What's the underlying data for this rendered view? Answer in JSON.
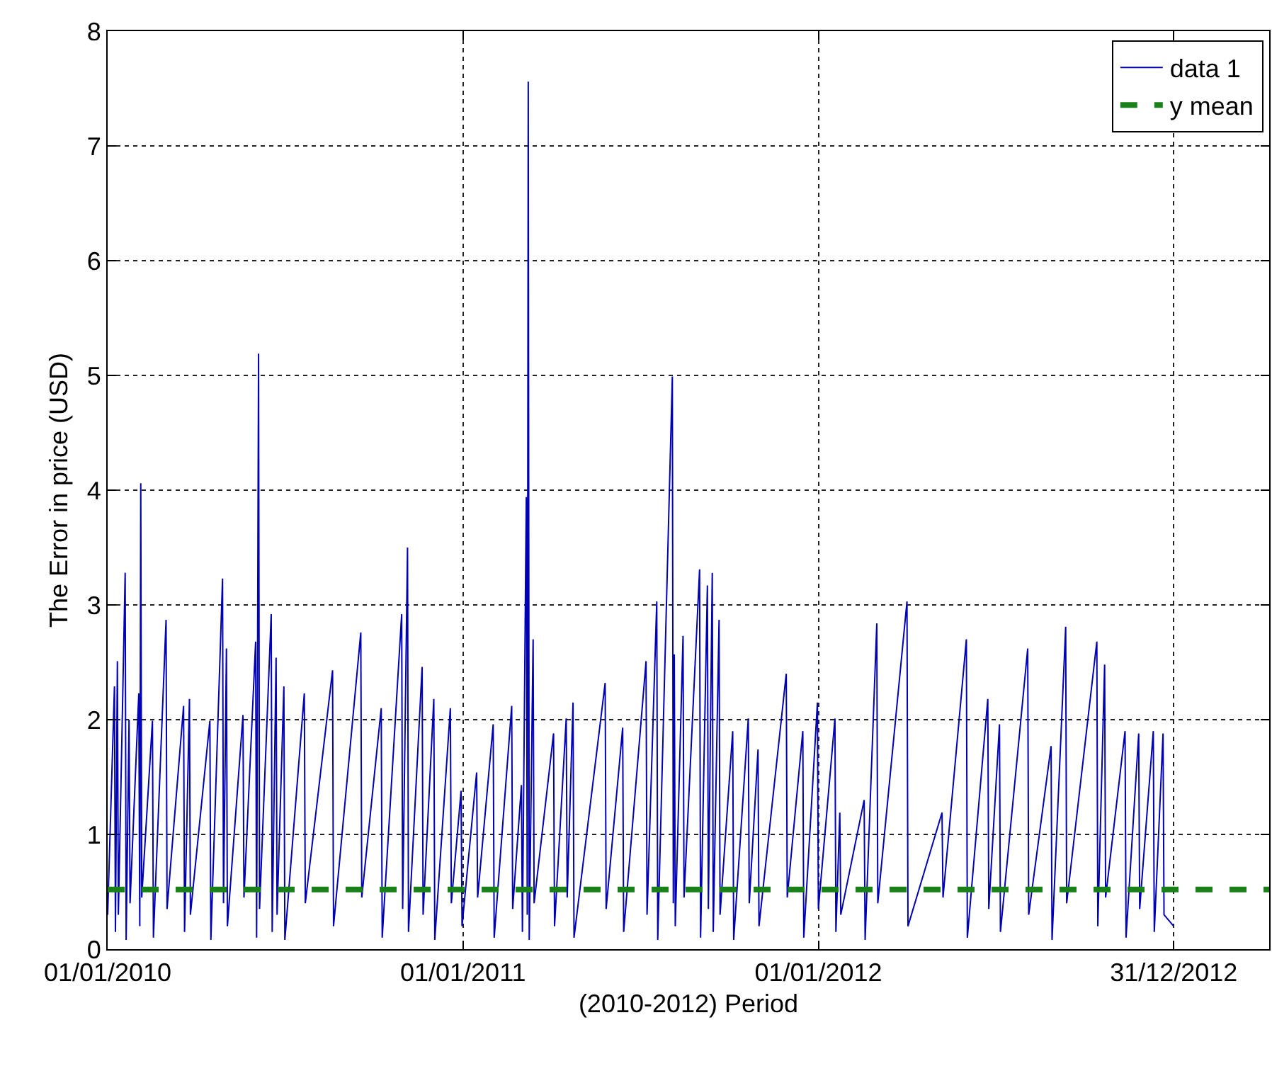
{
  "chart_data": {
    "type": "line",
    "xlabel": "(2010-2012) Period",
    "ylabel": "The Error in price (USD)",
    "xlim": [
      "2010-01-01",
      "2013-04-08"
    ],
    "ylim": [
      0,
      8
    ],
    "xticks": [
      {
        "value": "2010-01-01",
        "label": "01/01/2010"
      },
      {
        "value": "2011-01-01",
        "label": "01/01/2011"
      },
      {
        "value": "2012-01-01",
        "label": "01/01/2012"
      },
      {
        "value": "2012-12-31",
        "label": "31/12/2012"
      }
    ],
    "yticks": [
      0,
      1,
      2,
      3,
      4,
      5,
      6,
      7,
      8
    ],
    "grid": true,
    "legend": "top right",
    "line_style": "solid",
    "marker": "none",
    "ref_lines": [
      {
        "axis": "y",
        "value": 0.52,
        "label": "y mean",
        "color": "#1a801a",
        "line_style": "dashed"
      }
    ],
    "series": [
      {
        "name": "data 1",
        "color": "#0000b4",
        "x": [
          "2010-01-01",
          "2010-01-08",
          "2010-01-09",
          "2010-01-11",
          "2010-01-12",
          "2010-01-19",
          "2010-01-20",
          "2010-01-23",
          "2010-01-24",
          "2010-02-02",
          "2010-02-03",
          "2010-02-04",
          "2010-02-05",
          "2010-02-16",
          "2010-02-17",
          "2010-03-02",
          "2010-03-03",
          "2010-03-20",
          "2010-03-21",
          "2010-03-26",
          "2010-03-27",
          "2010-04-16",
          "2010-04-17",
          "2010-04-29",
          "2010-04-30",
          "2010-05-03",
          "2010-05-04",
          "2010-05-20",
          "2010-05-21",
          "2010-06-02",
          "2010-06-03",
          "2010-06-05",
          "2010-06-06",
          "2010-06-18",
          "2010-06-19",
          "2010-06-23",
          "2010-06-24",
          "2010-07-01",
          "2010-07-02",
          "2010-07-22",
          "2010-07-23",
          "2010-08-20",
          "2010-08-21",
          "2010-09-18",
          "2010-09-19",
          "2010-10-09",
          "2010-10-10",
          "2010-10-30",
          "2010-10-31",
          "2010-11-05",
          "2010-11-06",
          "2010-11-20",
          "2010-11-21",
          "2010-12-02",
          "2010-12-03",
          "2010-12-19",
          "2010-12-20",
          "2010-12-30",
          "2010-12-31",
          "2011-01-15",
          "2011-01-16",
          "2011-02-01",
          "2011-02-02",
          "2011-02-20",
          "2011-02-21",
          "2011-03-02",
          "2011-03-03",
          "2011-03-07",
          "2011-03-08",
          "2011-03-09",
          "2011-03-10",
          "2011-03-14",
          "2011-03-15",
          "2011-04-04",
          "2011-04-05",
          "2011-04-17",
          "2011-04-18",
          "2011-04-24",
          "2011-04-25",
          "2011-05-27",
          "2011-05-28",
          "2011-06-14",
          "2011-06-15",
          "2011-07-08",
          "2011-07-09",
          "2011-07-19",
          "2011-07-20",
          "2011-08-04",
          "2011-08-05",
          "2011-08-06",
          "2011-08-07",
          "2011-08-15",
          "2011-08-16",
          "2011-09-01",
          "2011-09-02",
          "2011-09-09",
          "2011-09-10",
          "2011-09-14",
          "2011-09-15",
          "2011-09-21",
          "2011-09-22",
          "2011-10-05",
          "2011-10-06",
          "2011-10-21",
          "2011-10-22",
          "2011-10-31",
          "2011-11-01",
          "2011-11-29",
          "2011-11-30",
          "2011-12-16",
          "2011-12-17",
          "2011-12-31",
          "2012-01-01",
          "2012-01-18",
          "2012-01-19",
          "2012-01-23",
          "2012-01-24",
          "2012-02-17",
          "2012-02-18",
          "2012-03-01",
          "2012-03-02",
          "2012-04-01",
          "2012-04-02",
          "2012-05-07",
          "2012-05-08",
          "2012-06-01",
          "2012-06-02",
          "2012-06-23",
          "2012-06-24",
          "2012-07-05",
          "2012-07-06",
          "2012-08-03",
          "2012-08-04",
          "2012-08-27",
          "2012-08-28",
          "2012-09-11",
          "2012-09-12",
          "2012-10-13",
          "2012-10-14",
          "2012-10-21",
          "2012-10-22",
          "2012-11-11",
          "2012-11-12",
          "2012-11-25",
          "2012-11-26",
          "2012-12-10",
          "2012-12-11",
          "2012-12-20",
          "2012-12-21",
          "2012-12-31"
        ],
        "values": [
          0.3,
          2.29,
          0.15,
          2.51,
          0.3,
          3.28,
          0.08,
          2.0,
          0.4,
          2.23,
          0.2,
          4.06,
          0.45,
          1.99,
          0.1,
          2.87,
          0.35,
          2.12,
          0.15,
          2.18,
          0.3,
          1.99,
          0.08,
          3.23,
          0.4,
          2.62,
          0.2,
          2.04,
          0.45,
          2.68,
          0.1,
          5.19,
          0.35,
          2.92,
          0.15,
          2.54,
          0.3,
          2.29,
          0.08,
          2.23,
          0.4,
          2.43,
          0.2,
          2.76,
          0.45,
          2.1,
          0.1,
          2.92,
          0.35,
          3.5,
          0.15,
          2.46,
          0.3,
          2.18,
          0.08,
          2.1,
          0.4,
          1.38,
          0.2,
          1.54,
          0.45,
          1.96,
          0.1,
          2.12,
          0.35,
          1.43,
          0.15,
          3.94,
          0.3,
          7.56,
          0.08,
          2.7,
          0.4,
          1.88,
          0.2,
          2.01,
          0.45,
          2.15,
          0.1,
          2.32,
          0.35,
          1.93,
          0.15,
          2.51,
          0.3,
          3.03,
          0.08,
          4.99,
          0.4,
          2.57,
          0.2,
          2.73,
          0.45,
          3.31,
          0.1,
          3.17,
          0.35,
          3.28,
          0.15,
          2.87,
          0.3,
          1.9,
          0.08,
          2.01,
          0.4,
          1.74,
          0.2,
          2.4,
          0.45,
          1.9,
          0.1,
          2.15,
          0.35,
          2.01,
          0.15,
          1.19,
          0.3,
          1.3,
          0.08,
          2.84,
          0.4,
          3.03,
          0.2,
          1.19,
          0.45,
          2.7,
          0.1,
          2.18,
          0.35,
          1.96,
          0.15,
          2.62,
          0.3,
          1.77,
          0.08,
          2.81,
          0.4,
          2.68,
          0.2,
          2.48,
          0.45,
          1.9,
          0.1,
          1.88,
          0.35,
          1.9,
          0.15,
          1.88,
          0.3,
          0.2
        ]
      }
    ]
  }
}
